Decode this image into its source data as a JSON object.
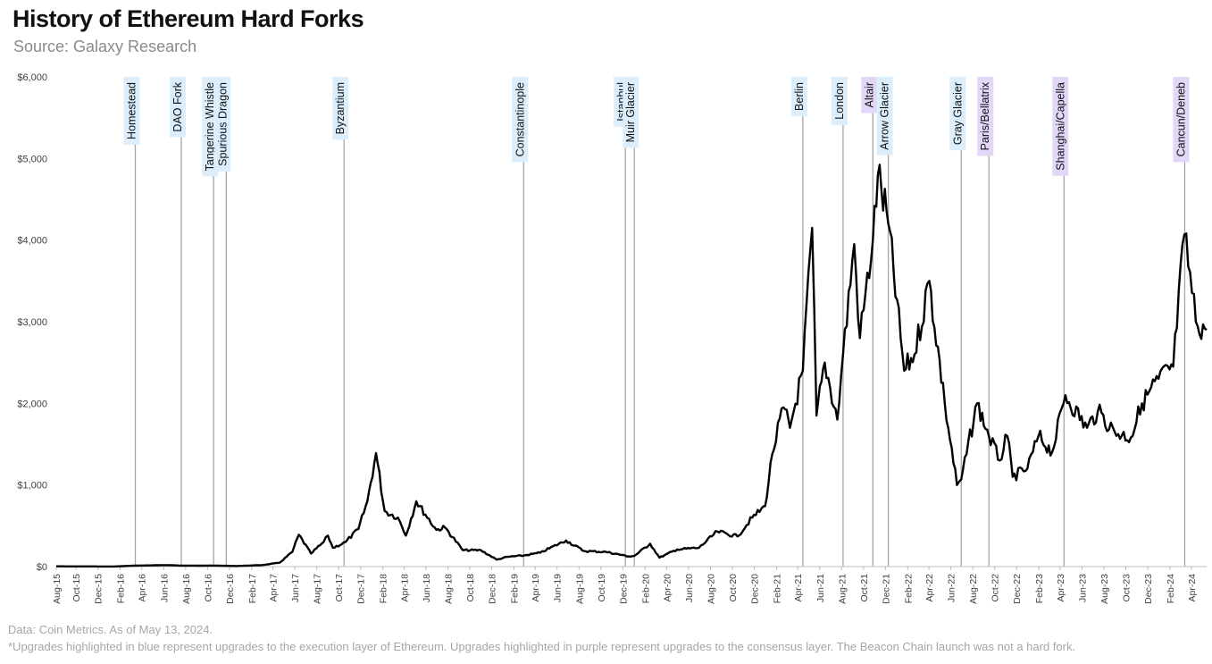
{
  "header": {
    "title": "History of Ethereum Hard Forks",
    "subtitle": "Source: Galaxy Research"
  },
  "footer": {
    "data_note": "Data: Coin Metrics. As of May 13, 2024.",
    "legend_note": "*Upgrades highlighted in blue represent upgrades to the execution layer of Ethereum. Upgrades highlighted in purple represent upgrades to the consensus layer. The Beacon Chain launch was not a hard fork."
  },
  "colors": {
    "execution_layer": "#dceefb",
    "consensus_layer": "#e3d7f7",
    "fork_line": "#a6a6a6",
    "price_line": "#000000",
    "axis": "#bfbfbf"
  },
  "chart_data": {
    "type": "line",
    "title": "History of Ethereum Hard Forks",
    "subtitle": "Source: Galaxy Research",
    "xlabel": "",
    "ylabel": "",
    "x_range": [
      "2015-08-07",
      "2024-05-13"
    ],
    "ylim": [
      0,
      6000
    ],
    "y_ticks": [
      "$0",
      "$1,000",
      "$2,000",
      "$3,000",
      "$4,000",
      "$5,000",
      "$6,000"
    ],
    "y_tick_values": [
      0,
      1000,
      2000,
      3000,
      4000,
      5000,
      6000
    ],
    "x_tick_labels": [
      "Aug-15",
      "Oct-15",
      "Dec-15",
      "Feb-16",
      "Apr-16",
      "Jun-16",
      "Aug-16",
      "Oct-16",
      "Dec-16",
      "Feb-17",
      "Apr-17",
      "Jun-17",
      "Aug-17",
      "Oct-17",
      "Dec-17",
      "Feb-18",
      "Apr-18",
      "Jun-18",
      "Aug-18",
      "Oct-18",
      "Dec-18",
      "Feb-19",
      "Apr-19",
      "Jun-19",
      "Aug-19",
      "Oct-19",
      "Dec-19",
      "Feb-20",
      "Apr-20",
      "Jun-20",
      "Aug-20",
      "Oct-20",
      "Dec-20",
      "Feb-21",
      "Apr-21",
      "Jun-21",
      "Aug-21",
      "Oct-21",
      "Dec-21",
      "Feb-22",
      "Apr-22",
      "Jun-22",
      "Aug-22",
      "Oct-22",
      "Dec-22",
      "Feb-23",
      "Apr-23",
      "Jun-23",
      "Aug-23",
      "Oct-23",
      "Dec-23",
      "Feb-24",
      "Apr-24"
    ],
    "grid": false,
    "forks": [
      {
        "name": "Homestead",
        "date": "2016-03-14",
        "layer": "execution"
      },
      {
        "name": "DAO Fork",
        "date": "2016-07-20",
        "layer": "execution"
      },
      {
        "name": "Tangerine Whistle",
        "date": "2016-10-18",
        "layer": "execution"
      },
      {
        "name": "Spurious Dragon",
        "date": "2016-11-22",
        "layer": "execution"
      },
      {
        "name": "Byzantium",
        "date": "2017-10-16",
        "layer": "execution"
      },
      {
        "name": "Constantinople",
        "date": "2019-02-28",
        "layer": "execution"
      },
      {
        "name": "Istanbul",
        "date": "2019-12-08",
        "layer": "execution"
      },
      {
        "name": "Muir Glacier",
        "date": "2020-01-02",
        "layer": "execution"
      },
      {
        "name": "Berlin",
        "date": "2021-04-15",
        "layer": "execution"
      },
      {
        "name": "London",
        "date": "2021-08-05",
        "layer": "execution"
      },
      {
        "name": "Altair",
        "date": "2021-10-27",
        "layer": "consensus"
      },
      {
        "name": "Arrow Glacier",
        "date": "2021-12-09",
        "layer": "execution"
      },
      {
        "name": "Gray Glacier",
        "date": "2022-06-30",
        "layer": "execution"
      },
      {
        "name": "Paris/Bellatrix",
        "date": "2022-09-15",
        "layer": "consensus"
      },
      {
        "name": "Shanghai/Capella",
        "date": "2023-04-12",
        "layer": "consensus"
      },
      {
        "name": "Cancun/Deneb",
        "date": "2024-03-13",
        "layer": "consensus"
      }
    ],
    "series": [
      {
        "values": [
          [
            "2015-08-07",
            3
          ],
          [
            "2016-01-15",
            1
          ],
          [
            "2016-03-14",
            12
          ],
          [
            "2016-06-15",
            18
          ],
          [
            "2016-07-20",
            12
          ],
          [
            "2016-10-18",
            12
          ],
          [
            "2016-12-20",
            7
          ],
          [
            "2017-03-01",
            18
          ],
          [
            "2017-04-20",
            48
          ],
          [
            "2017-05-25",
            180
          ],
          [
            "2017-06-12",
            390
          ],
          [
            "2017-07-16",
            160
          ],
          [
            "2017-08-20",
            300
          ],
          [
            "2017-09-01",
            380
          ],
          [
            "2017-09-15",
            230
          ],
          [
            "2017-10-20",
            300
          ],
          [
            "2017-11-25",
            460
          ],
          [
            "2017-12-20",
            800
          ],
          [
            "2018-01-13",
            1390
          ],
          [
            "2018-02-06",
            680
          ],
          [
            "2018-03-15",
            600
          ],
          [
            "2018-04-06",
            380
          ],
          [
            "2018-05-05",
            800
          ],
          [
            "2018-06-30",
            450
          ],
          [
            "2018-07-24",
            480
          ],
          [
            "2018-09-12",
            200
          ],
          [
            "2018-11-01",
            200
          ],
          [
            "2018-12-15",
            85
          ],
          [
            "2019-01-15",
            120
          ],
          [
            "2019-02-28",
            135
          ],
          [
            "2019-04-15",
            170
          ],
          [
            "2019-06-26",
            320
          ],
          [
            "2019-08-15",
            190
          ],
          [
            "2019-10-15",
            180
          ],
          [
            "2019-12-17",
            125
          ],
          [
            "2020-01-02",
            130
          ],
          [
            "2020-02-15",
            280
          ],
          [
            "2020-03-12",
            110
          ],
          [
            "2020-04-30",
            210
          ],
          [
            "2020-06-30",
            230
          ],
          [
            "2020-08-20",
            430
          ],
          [
            "2020-10-15",
            370
          ],
          [
            "2020-11-25",
            600
          ],
          [
            "2020-12-31",
            740
          ],
          [
            "2021-01-20",
            1380
          ],
          [
            "2021-02-20",
            1950
          ],
          [
            "2021-03-10",
            1700
          ],
          [
            "2021-04-15",
            2400
          ],
          [
            "2021-05-11",
            4150
          ],
          [
            "2021-05-23",
            1850
          ],
          [
            "2021-06-15",
            2500
          ],
          [
            "2021-07-20",
            1800
          ],
          [
            "2021-08-05",
            2600
          ],
          [
            "2021-09-05",
            3950
          ],
          [
            "2021-09-21",
            2800
          ],
          [
            "2021-10-27",
            4000
          ],
          [
            "2021-11-10",
            4800
          ],
          [
            "2021-12-09",
            4200
          ],
          [
            "2022-01-22",
            2400
          ],
          [
            "2022-02-20",
            2600
          ],
          [
            "2022-04-02",
            3500
          ],
          [
            "2022-05-15",
            2000
          ],
          [
            "2022-06-18",
            1000
          ],
          [
            "2022-06-30",
            1070
          ],
          [
            "2022-08-13",
            2000
          ],
          [
            "2022-09-15",
            1600
          ],
          [
            "2022-10-15",
            1300
          ],
          [
            "2022-11-05",
            1600
          ],
          [
            "2022-11-20",
            1100
          ],
          [
            "2022-12-31",
            1200
          ],
          [
            "2023-01-31",
            1600
          ],
          [
            "2023-03-10",
            1400
          ],
          [
            "2023-04-16",
            2100
          ],
          [
            "2023-06-15",
            1700
          ],
          [
            "2023-07-15",
            1900
          ],
          [
            "2023-08-31",
            1650
          ],
          [
            "2023-10-15",
            1580
          ],
          [
            "2023-11-15",
            2000
          ],
          [
            "2023-12-31",
            2300
          ],
          [
            "2024-02-10",
            2450
          ],
          [
            "2024-03-12",
            4070
          ],
          [
            "2024-04-13",
            3000
          ],
          [
            "2024-05-13",
            2900
          ]
        ]
      }
    ]
  }
}
